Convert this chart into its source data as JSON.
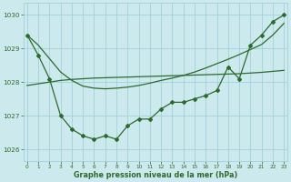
{
  "hours": [
    0,
    1,
    2,
    3,
    4,
    5,
    6,
    7,
    8,
    9,
    10,
    11,
    12,
    13,
    14,
    15,
    16,
    17,
    18,
    19,
    20,
    21,
    22,
    23
  ],
  "pressure_main": [
    1029.4,
    1028.8,
    1028.1,
    1027.0,
    1026.6,
    1026.4,
    1026.3,
    1026.4,
    1026.3,
    1026.7,
    1026.9,
    1026.9,
    1027.2,
    1027.4,
    1027.4,
    1027.5,
    1027.6,
    1027.75,
    1028.45,
    1028.1,
    1029.1,
    1029.4,
    1029.8,
    1030.0
  ],
  "smooth_line1": [
    1029.4,
    1029.1,
    1028.7,
    1028.3,
    1028.05,
    1027.88,
    1027.82,
    1027.8,
    1027.82,
    1027.85,
    1027.9,
    1027.97,
    1028.05,
    1028.12,
    1028.2,
    1028.3,
    1028.42,
    1028.55,
    1028.68,
    1028.82,
    1028.97,
    1029.12,
    1029.4,
    1029.75
  ],
  "smooth_line2": [
    1027.9,
    1027.95,
    1028.0,
    1028.05,
    1028.08,
    1028.1,
    1028.12,
    1028.13,
    1028.14,
    1028.15,
    1028.16,
    1028.17,
    1028.18,
    1028.19,
    1028.2,
    1028.21,
    1028.22,
    1028.23,
    1028.24,
    1028.25,
    1028.27,
    1028.29,
    1028.32,
    1028.35
  ],
  "background_color": "#cce9ee",
  "grid_color": "#99cdd6",
  "line_color": "#2d6a2d",
  "line_width": 0.9,
  "marker": "D",
  "marker_size": 2.0,
  "xlabel": "Graphe pression niveau de la mer (hPa)",
  "yticks": [
    1026,
    1027,
    1028,
    1029,
    1030
  ],
  "xticks": [
    0,
    1,
    2,
    3,
    4,
    5,
    6,
    7,
    8,
    9,
    10,
    11,
    12,
    13,
    14,
    15,
    16,
    17,
    18,
    19,
    20,
    21,
    22,
    23
  ],
  "ylim": [
    1025.65,
    1030.35
  ],
  "xlim": [
    -0.3,
    23.3
  ]
}
